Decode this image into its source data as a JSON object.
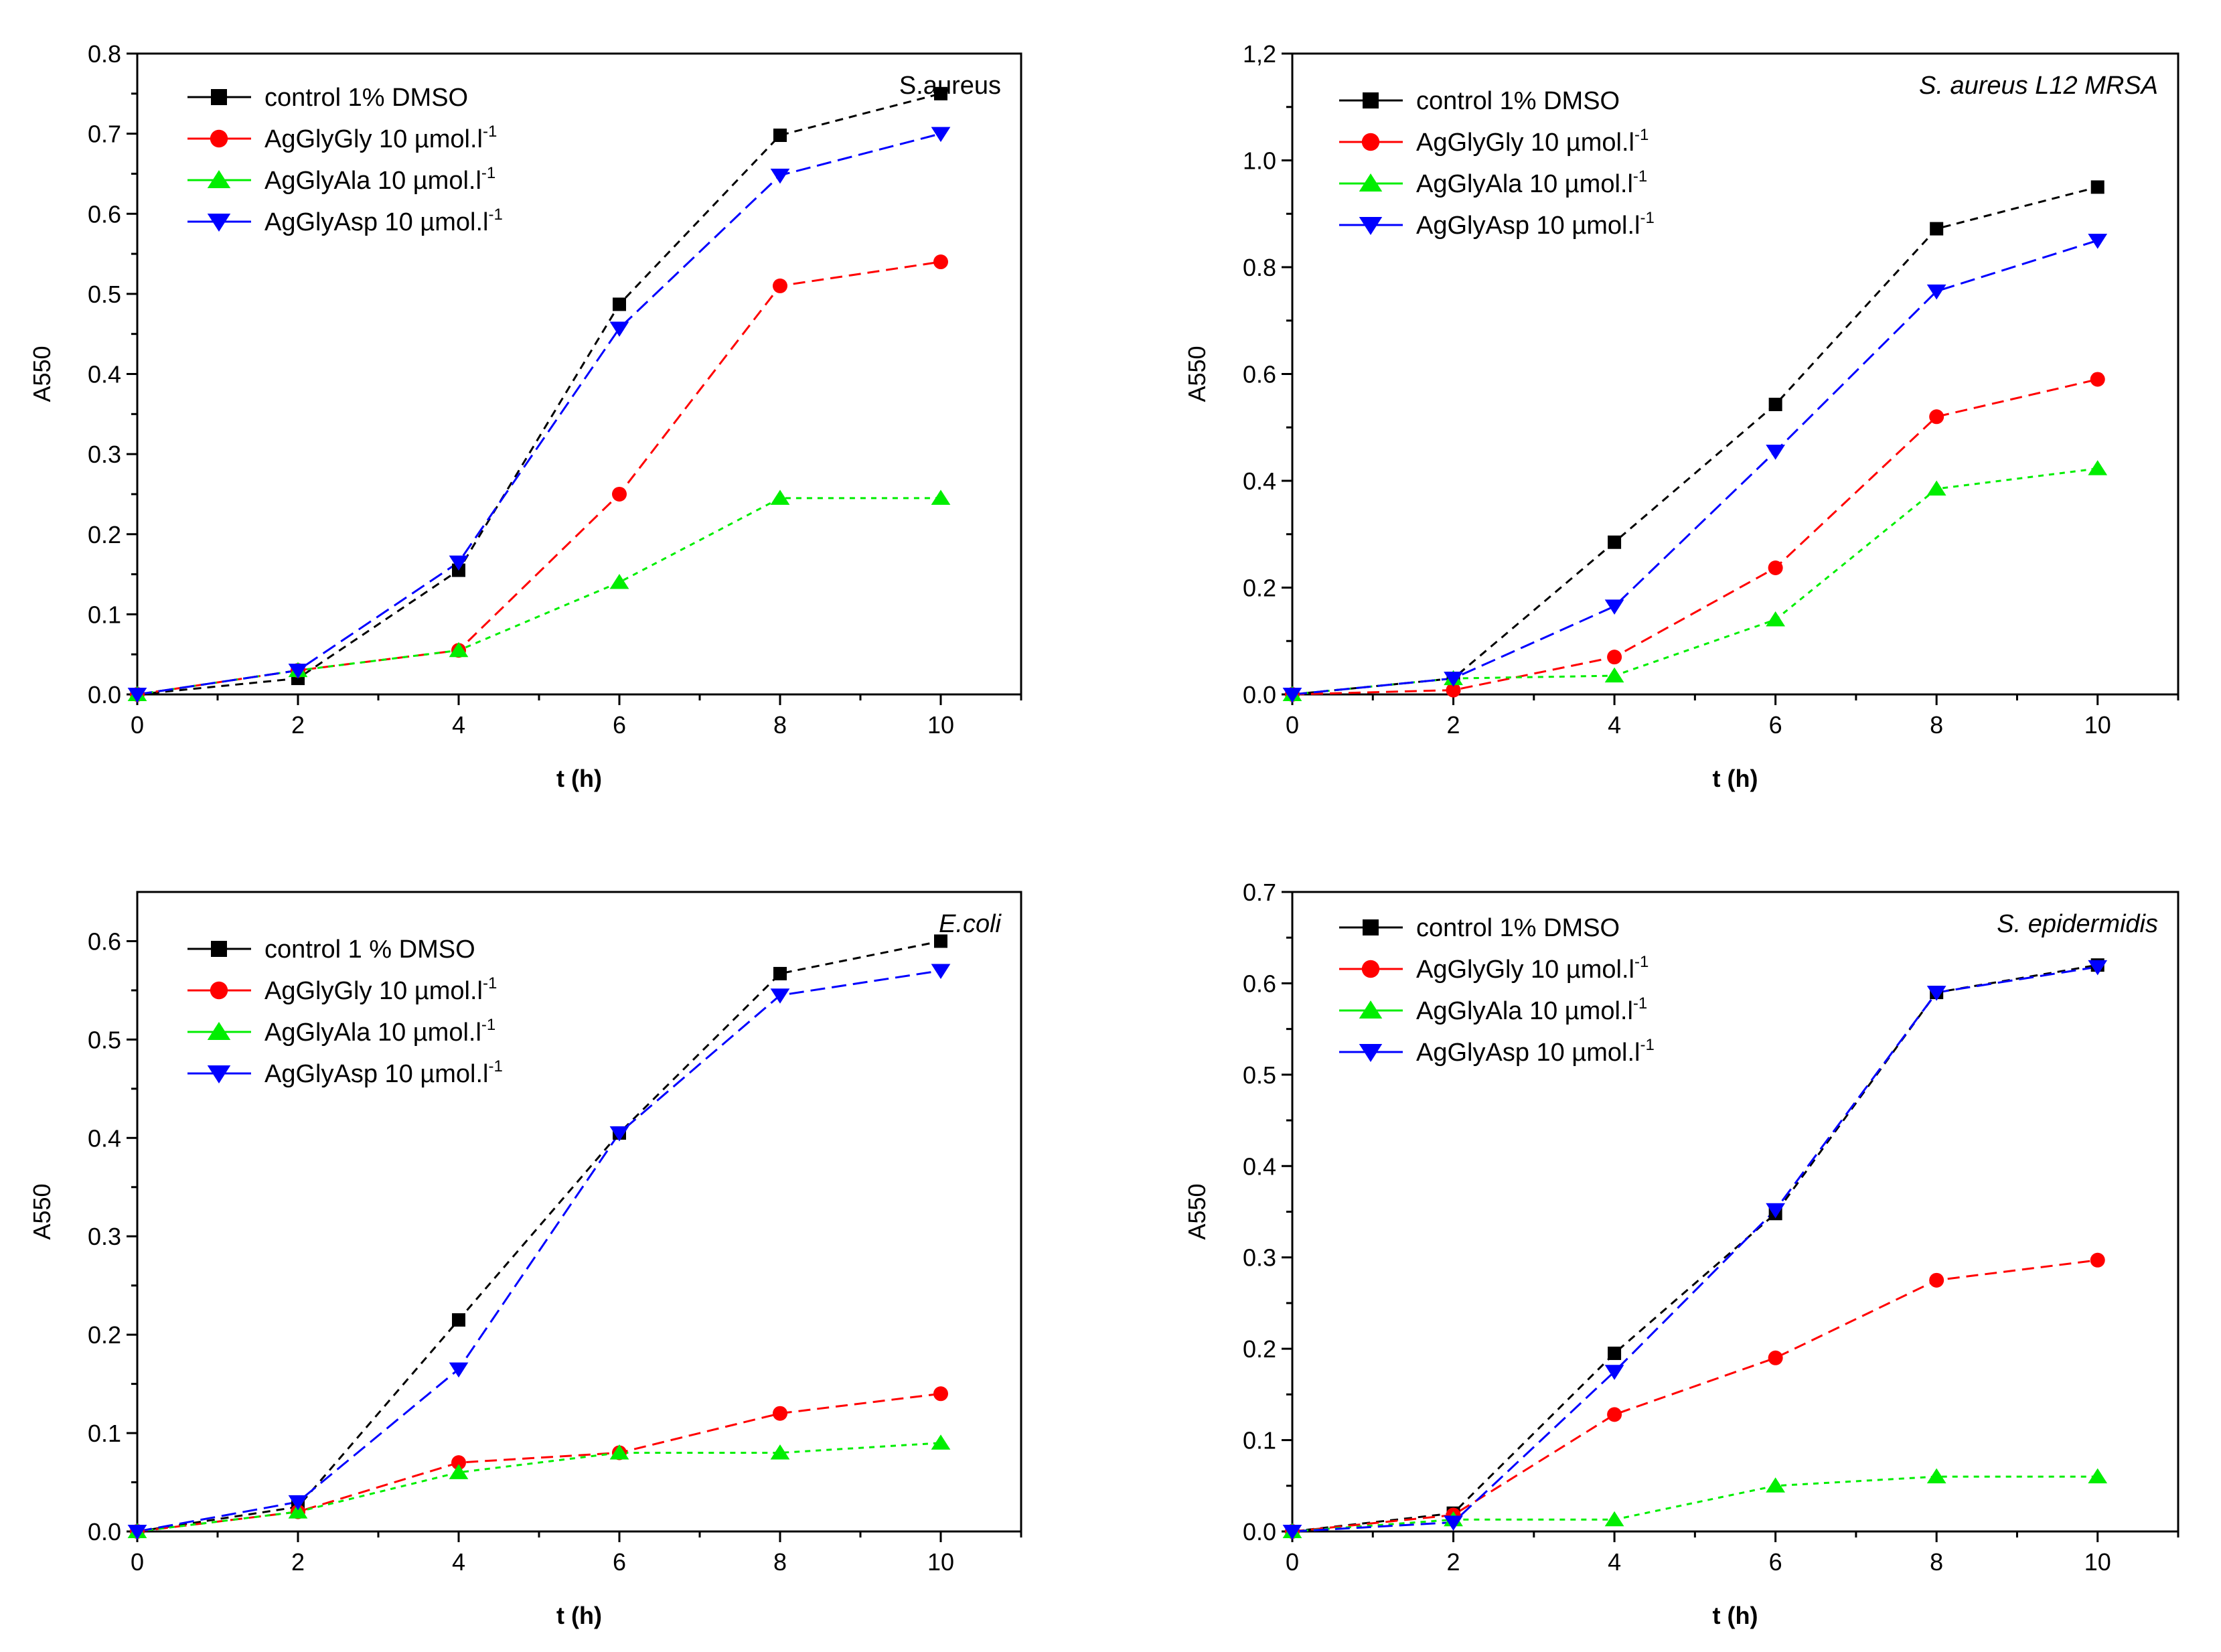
{
  "colors": {
    "axis": "#000000",
    "control": "#000000",
    "gly": "#ff0000",
    "ala": "#00ee00",
    "asp": "#0000ff"
  },
  "chart_data": [
    {
      "type": "line",
      "title": "S.aureus",
      "title_italic": false,
      "xlabel": "t (h)",
      "ylabel": "A550",
      "xlim": [
        0,
        11
      ],
      "ylim": [
        0,
        0.8
      ],
      "xticks": [
        0,
        2,
        4,
        6,
        8,
        10
      ],
      "yticks": [
        0.0,
        0.1,
        0.2,
        0.3,
        0.4,
        0.5,
        0.6,
        0.7,
        0.8
      ],
      "ytick_labels": [
        "0.0",
        "0.1",
        "0.2",
        "0.3",
        "0.4",
        "0.5",
        "0.6",
        "0.7",
        "0.8"
      ],
      "x": [
        0,
        2,
        4,
        6,
        8,
        10
      ],
      "legend_position": "top-left",
      "series": [
        {
          "name": "control 1% DMSO",
          "name_main": "control 1% DMSO",
          "name_sup": "",
          "color": "#000000",
          "marker": "square",
          "values": [
            0.0,
            0.02,
            0.155,
            0.487,
            0.698,
            0.75
          ]
        },
        {
          "name": "AgGlyGly 10 µmol.l-1",
          "name_main": "AgGlyGly 10 µmol.l",
          "name_sup": "-1",
          "color": "#ff0000",
          "marker": "circle",
          "values": [
            0.0,
            0.03,
            0.055,
            0.25,
            0.51,
            0.54
          ]
        },
        {
          "name": "AgGlyAla 10 µmol.l-1",
          "name_main": "AgGlyAla 10 µmol.l",
          "name_sup": "-1",
          "color": "#00ee00",
          "marker": "triangle-up",
          "values": [
            0.0,
            0.03,
            0.055,
            0.14,
            0.245,
            0.245
          ]
        },
        {
          "name": "AgGlyAsp 10 µmol.l-1",
          "name_main": "AgGlyAsp 10 µmol.l",
          "name_sup": "-1",
          "color": "#0000ff",
          "marker": "triangle-down",
          "values": [
            0.0,
            0.03,
            0.165,
            0.457,
            0.648,
            0.7
          ]
        }
      ]
    },
    {
      "type": "line",
      "title": "S. aureus L12 MRSA",
      "title_italic": true,
      "xlabel": "t (h)",
      "ylabel": "A550",
      "xlim": [
        0,
        11
      ],
      "ylim": [
        0,
        1.2
      ],
      "xticks": [
        0,
        2,
        4,
        6,
        8,
        10
      ],
      "yticks": [
        0.0,
        0.2,
        0.4,
        0.6,
        0.8,
        1.0,
        1.2
      ],
      "ytick_labels": [
        "0.0",
        "0.2",
        "0.4",
        "0.6",
        "0.8",
        "1.0",
        "1,2"
      ],
      "x": [
        0,
        2,
        4,
        6,
        8,
        10
      ],
      "legend_position": "top-left",
      "series": [
        {
          "name": "control 1% DMSO",
          "name_main": "control 1% DMSO",
          "name_sup": "",
          "color": "#000000",
          "marker": "square",
          "values": [
            0.0,
            0.03,
            0.285,
            0.543,
            0.872,
            0.95
          ]
        },
        {
          "name": "AgGlyGly 10 µmol.l-1",
          "name_main": "AgGlyGly 10 µmol.l",
          "name_sup": "-1",
          "color": "#ff0000",
          "marker": "circle",
          "values": [
            0.0,
            0.008,
            0.07,
            0.237,
            0.52,
            0.59
          ]
        },
        {
          "name": "AgGlyAla 10 µmol.l-1",
          "name_main": "AgGlyAla 10 µmol.l",
          "name_sup": "-1",
          "color": "#00ee00",
          "marker": "triangle-up",
          "values": [
            0.0,
            0.03,
            0.035,
            0.14,
            0.385,
            0.423
          ]
        },
        {
          "name": "AgGlyAsp 10 µmol.l-1",
          "name_main": "AgGlyAsp 10 µmol.l",
          "name_sup": "-1",
          "color": "#0000ff",
          "marker": "triangle-down",
          "values": [
            0.0,
            0.03,
            0.165,
            0.455,
            0.755,
            0.85
          ]
        }
      ]
    },
    {
      "type": "line",
      "title": "E.coli",
      "title_italic": true,
      "xlabel": "t (h)",
      "ylabel": "A550",
      "xlim": [
        0,
        11
      ],
      "ylim": [
        0,
        0.65
      ],
      "xticks": [
        0,
        2,
        4,
        6,
        8,
        10
      ],
      "yticks": [
        0.0,
        0.1,
        0.2,
        0.3,
        0.4,
        0.5,
        0.6
      ],
      "ytick_labels": [
        "0.0",
        "0.1",
        "0.2",
        "0.3",
        "0.4",
        "0.5",
        "0.6"
      ],
      "x": [
        0,
        2,
        4,
        6,
        8,
        10
      ],
      "legend_position": "top-left",
      "series": [
        {
          "name": "control 1 % DMSO",
          "name_main": "control 1 % DMSO",
          "name_sup": "",
          "color": "#000000",
          "marker": "square",
          "values": [
            0.0,
            0.025,
            0.215,
            0.405,
            0.567,
            0.6
          ]
        },
        {
          "name": "AgGlyGly 10 µmol.l-1",
          "name_main": "AgGlyGly 10 µmol.l",
          "name_sup": "-1",
          "color": "#ff0000",
          "marker": "circle",
          "values": [
            0.0,
            0.02,
            0.07,
            0.08,
            0.12,
            0.14
          ]
        },
        {
          "name": "AgGlyAla 10 µmol.l-1",
          "name_main": "AgGlyAla 10 µmol.l",
          "name_sup": "-1",
          "color": "#00ee00",
          "marker": "triangle-up",
          "values": [
            0.0,
            0.02,
            0.06,
            0.08,
            0.08,
            0.09
          ]
        },
        {
          "name": "AgGlyAsp 10 µmol.l-1",
          "name_main": "AgGlyAsp 10 µmol.l",
          "name_sup": "-1",
          "color": "#0000ff",
          "marker": "triangle-down",
          "values": [
            0.0,
            0.03,
            0.165,
            0.405,
            0.545,
            0.57
          ]
        }
      ]
    },
    {
      "type": "line",
      "title": "S. epidermidis",
      "title_italic": true,
      "xlabel": "t (h)",
      "ylabel": "A550",
      "xlim": [
        0,
        11
      ],
      "ylim": [
        0,
        0.7
      ],
      "xticks": [
        0,
        2,
        4,
        6,
        8,
        10
      ],
      "yticks": [
        0.0,
        0.1,
        0.2,
        0.3,
        0.4,
        0.5,
        0.6,
        0.7
      ],
      "ytick_labels": [
        "0.0",
        "0.1",
        "0.2",
        "0.3",
        "0.4",
        "0.5",
        "0.6",
        "0.7"
      ],
      "x": [
        0,
        2,
        4,
        6,
        8,
        10
      ],
      "legend_position": "top-left",
      "series": [
        {
          "name": "control 1% DMSO",
          "name_main": "control 1% DMSO",
          "name_sup": "",
          "color": "#000000",
          "marker": "square",
          "values": [
            0.0,
            0.02,
            0.195,
            0.348,
            0.59,
            0.62
          ]
        },
        {
          "name": "AgGlyGly 10 µmol.l-1",
          "name_main": "AgGlyGly 10 µmol.l",
          "name_sup": "-1",
          "color": "#ff0000",
          "marker": "circle",
          "values": [
            0.0,
            0.018,
            0.128,
            0.19,
            0.275,
            0.297
          ]
        },
        {
          "name": "AgGlyAla 10 µmol.l-1",
          "name_main": "AgGlyAla 10 µmol.l",
          "name_sup": "-1",
          "color": "#00ee00",
          "marker": "triangle-up",
          "values": [
            0.0,
            0.013,
            0.013,
            0.05,
            0.06,
            0.06
          ]
        },
        {
          "name": "AgGlyAsp 10 µmol.l-1",
          "name_main": "AgGlyAsp 10 µmol.l",
          "name_sup": "-1",
          "color": "#0000ff",
          "marker": "triangle-down",
          "values": [
            0.0,
            0.01,
            0.175,
            0.352,
            0.59,
            0.618
          ]
        }
      ]
    }
  ]
}
